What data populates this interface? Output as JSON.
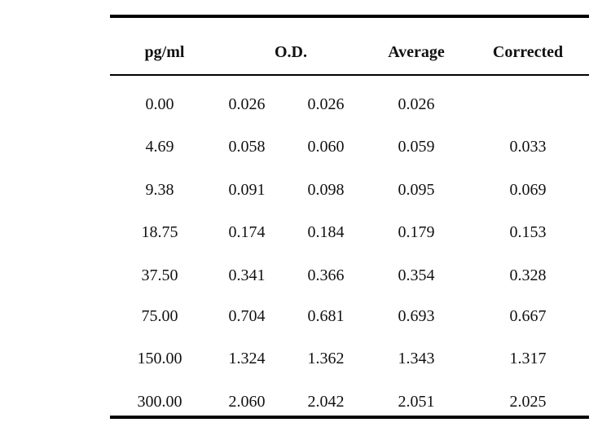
{
  "table": {
    "headers": {
      "conc": "pg/ml",
      "od": "O.D.",
      "average": "Average",
      "corrected": "Corrected"
    },
    "rows": [
      {
        "conc": "0.00",
        "od1": "0.026",
        "od2": "0.026",
        "average": "0.026",
        "corrected": ""
      },
      {
        "conc": "4.69",
        "od1": "0.058",
        "od2": "0.060",
        "average": "0.059",
        "corrected": "0.033"
      },
      {
        "conc": "9.38",
        "od1": "0.091",
        "od2": "0.098",
        "average": "0.095",
        "corrected": "0.069"
      },
      {
        "conc": "18.75",
        "od1": "0.174",
        "od2": "0.184",
        "average": "0.179",
        "corrected": "0.153"
      },
      {
        "conc": "37.50",
        "od1": "0.341",
        "od2": "0.366",
        "average": "0.354",
        "corrected": "0.328"
      },
      {
        "conc": "75.00",
        "od1": "0.704",
        "od2": "0.681",
        "average": "0.693",
        "corrected": "0.667"
      },
      {
        "conc": "150.00",
        "od1": "1.324",
        "od2": "1.362",
        "average": "1.343",
        "corrected": "1.317"
      },
      {
        "conc": "300.00",
        "od1": "2.060",
        "od2": "2.042",
        "average": "2.051",
        "corrected": "2.025"
      }
    ]
  }
}
